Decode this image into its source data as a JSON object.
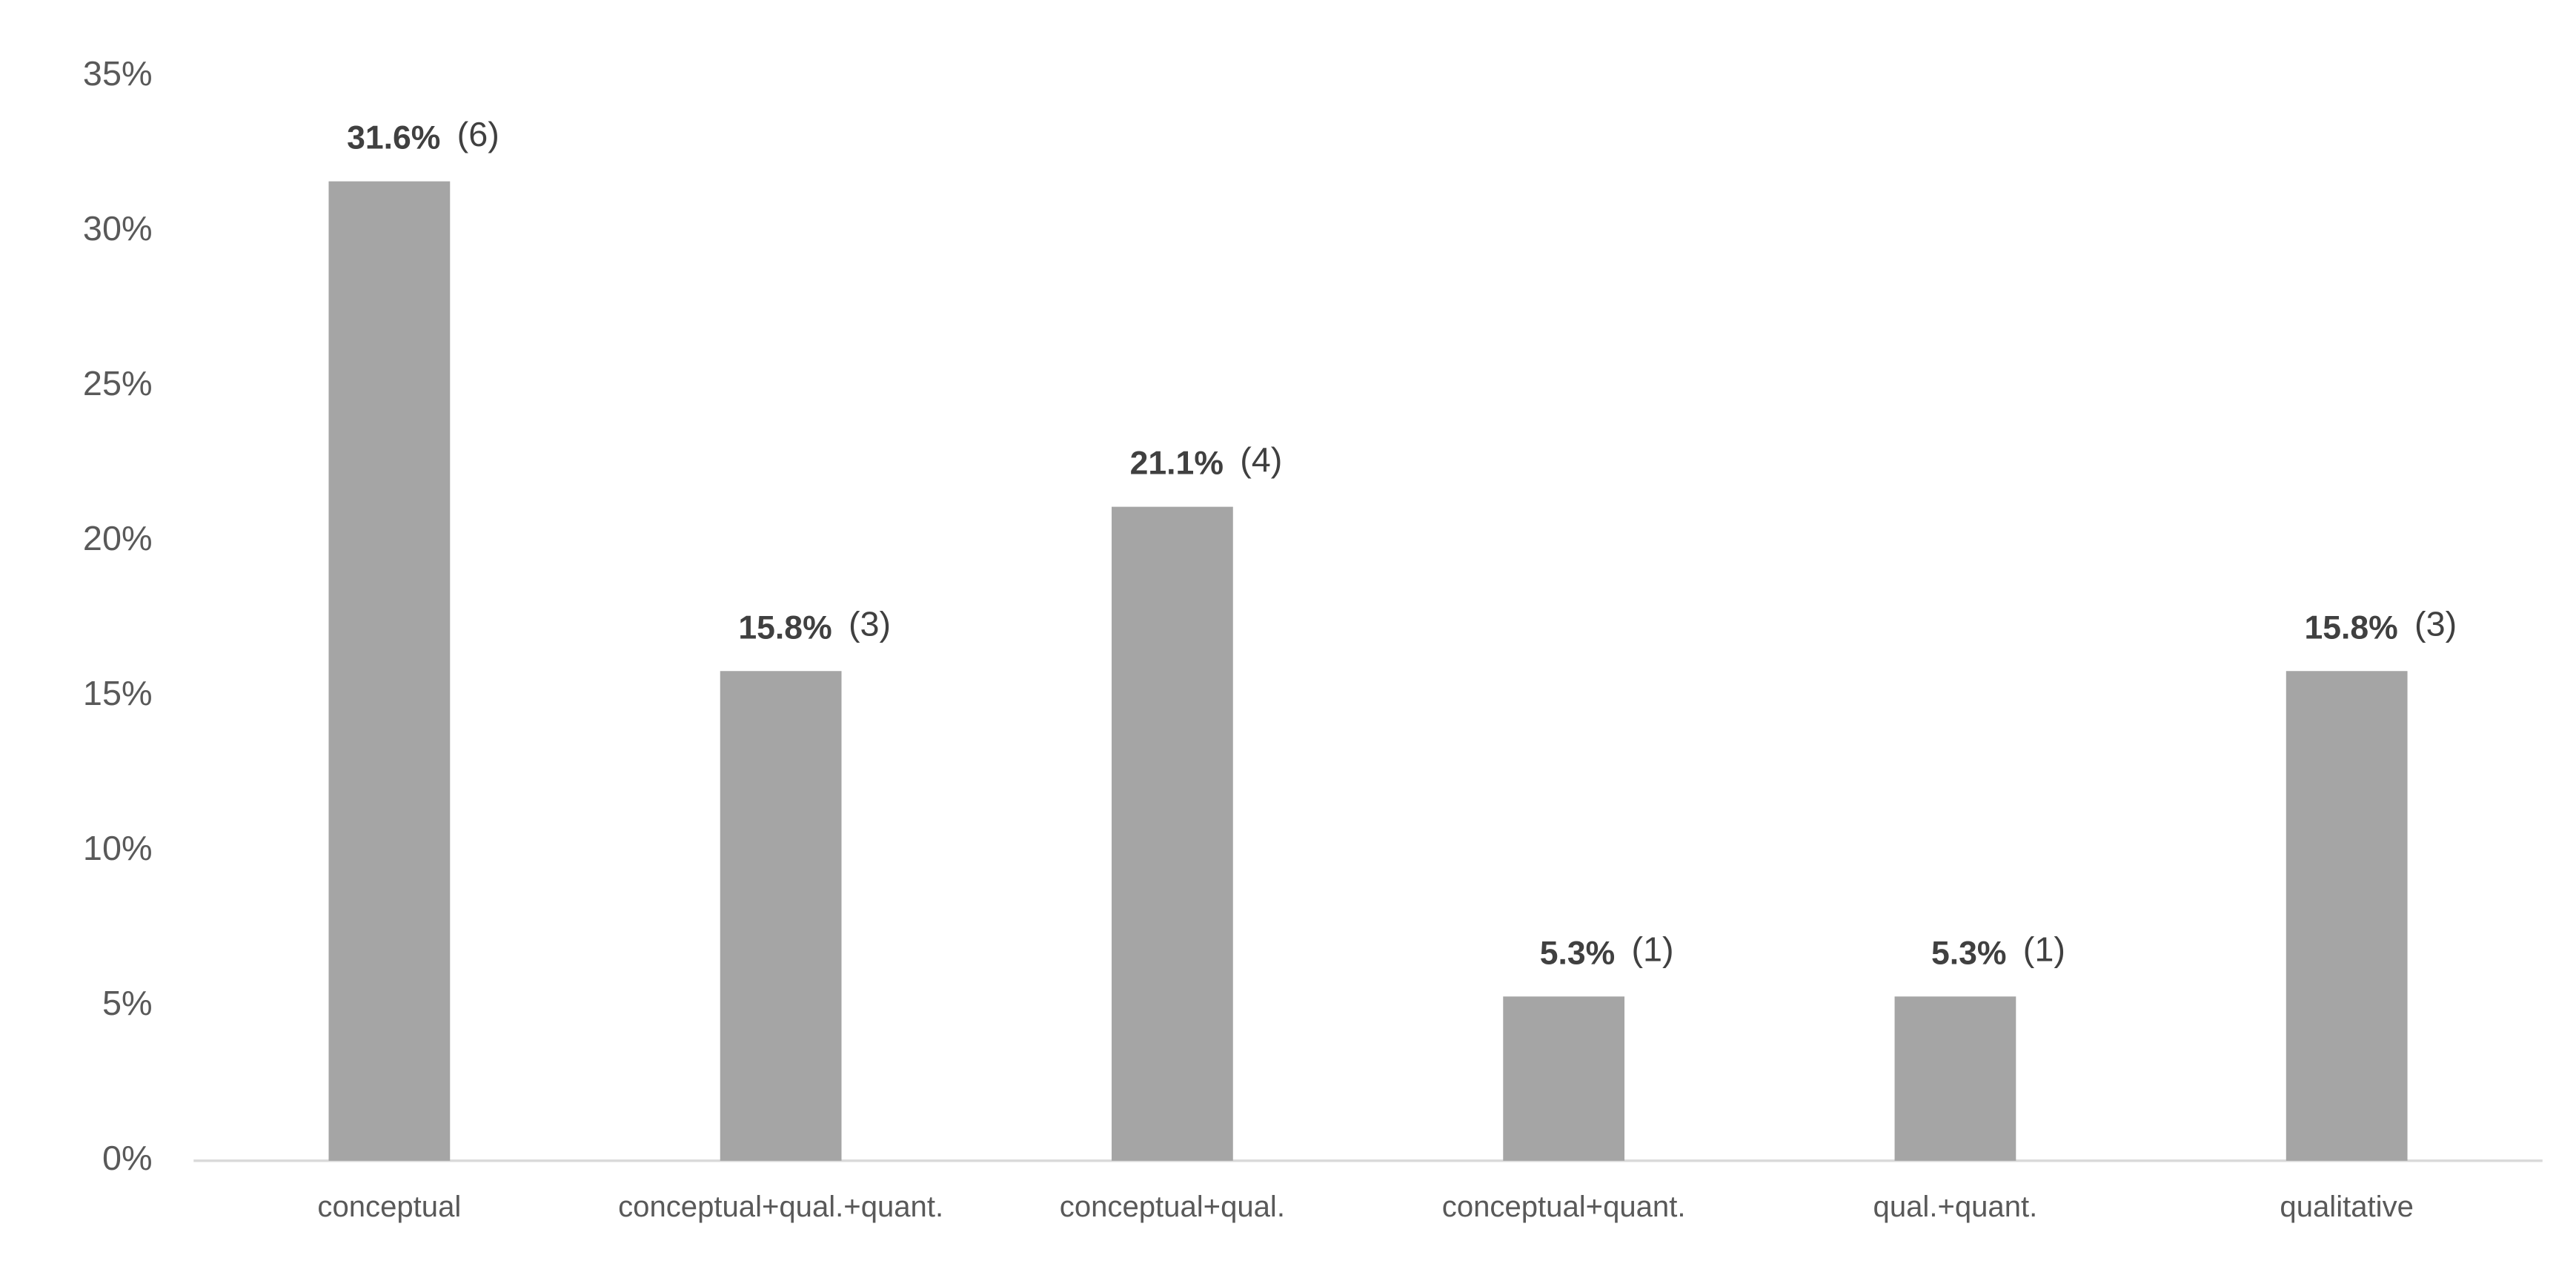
{
  "chart_data": {
    "type": "bar",
    "categories": [
      "conceptual",
      "conceptual+qual.+quant.",
      "conceptual+qual.",
      "conceptual+quant.",
      "qual.+quant.",
      "qualitative"
    ],
    "values": [
      31.6,
      15.8,
      21.1,
      5.3,
      5.3,
      15.8
    ],
    "value_labels": [
      "31.6%",
      "15.8%",
      "21.1%",
      "5.3%",
      "5.3%",
      "15.8%"
    ],
    "count_labels": [
      "(6)",
      "(3)",
      "(4)",
      "(1)",
      "(1)",
      "(3)"
    ],
    "color": "#a5a5a5",
    "ylim": [
      0,
      35
    ],
    "yticks": [
      {
        "value": 0,
        "label": "0%"
      },
      {
        "value": 5,
        "label": "5%"
      },
      {
        "value": 10,
        "label": "10%"
      },
      {
        "value": 15,
        "label": "15%"
      },
      {
        "value": 20,
        "label": "20%"
      },
      {
        "value": 25,
        "label": "25%"
      },
      {
        "value": 30,
        "label": "30%"
      },
      {
        "value": 35,
        "label": "35%"
      }
    ],
    "grid": false
  }
}
